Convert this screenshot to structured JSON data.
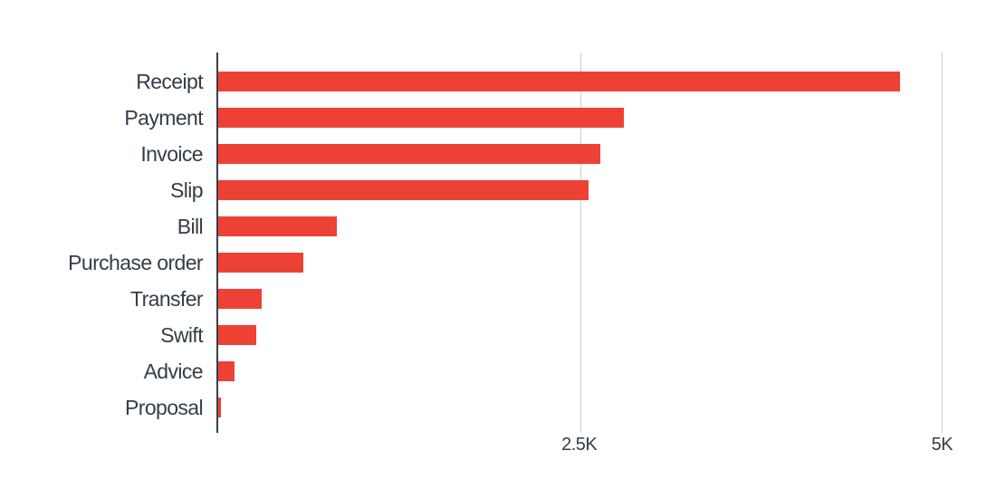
{
  "chart_data": {
    "type": "bar",
    "orientation": "horizontal",
    "title": "",
    "xlabel": "",
    "ylabel": "",
    "categories": [
      "Receipt",
      "Payment",
      "Invoice",
      "Slip",
      "Bill",
      "Purchase order",
      "Transfer",
      "Swift",
      "Advice",
      "Proposal"
    ],
    "values": [
      4710,
      2800,
      2640,
      2560,
      820,
      590,
      300,
      265,
      115,
      20
    ],
    "axis_max": 5310,
    "x_ticks": [
      {
        "label": "2.5K",
        "value": 2500
      },
      {
        "label": "5K",
        "value": 5000
      }
    ],
    "grid": "vertical-only",
    "legend": "none",
    "colors": {
      "bar": "#ee4135",
      "axis_line": "#37404b",
      "gridline": "#cbcdd0",
      "text": "#333e48"
    }
  }
}
